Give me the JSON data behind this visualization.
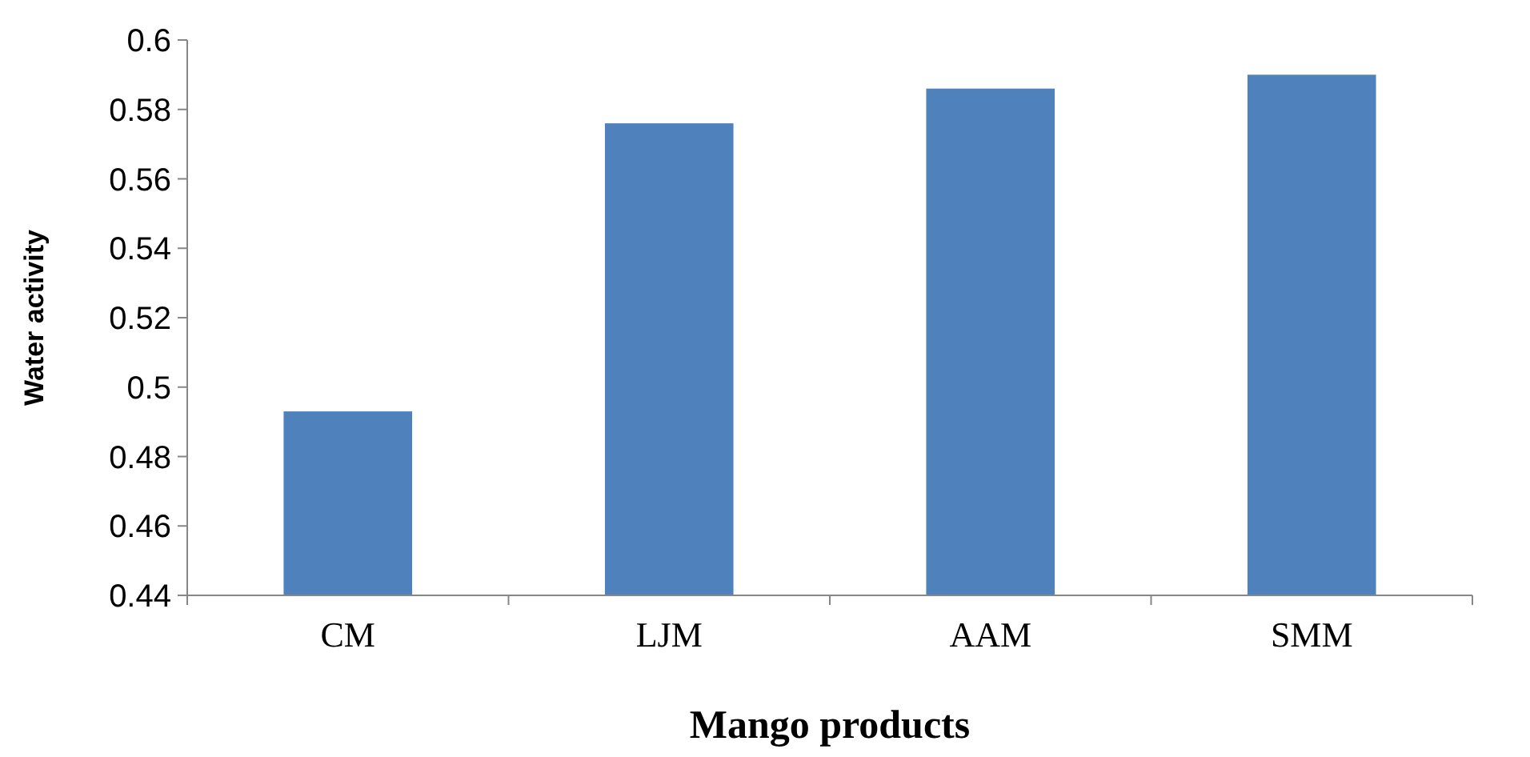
{
  "chart_data": {
    "type": "bar",
    "xlabel": "Mango products",
    "ylabel": "Water activity",
    "categories": [
      "CM",
      "LJM",
      "AAM",
      "SMM"
    ],
    "values": [
      0.493,
      0.576,
      0.586,
      0.59
    ],
    "color": "#4f81bd",
    "ylim": [
      0.44,
      0.6
    ],
    "yticks": [
      0.44,
      0.46,
      0.48,
      0.5,
      0.52,
      0.54,
      0.56,
      0.58,
      0.6
    ],
    "grid": false
  }
}
